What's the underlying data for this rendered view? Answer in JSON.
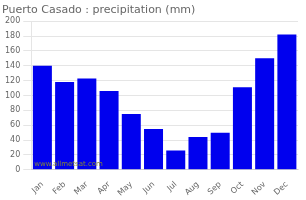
{
  "chart_data": {
    "type": "bar",
    "title": "Puerto Casado : precipitation (mm)",
    "categories": [
      "Jan",
      "Feb",
      "Mar",
      "Apr",
      "May",
      "Jun",
      "Jul",
      "Aug",
      "Sep",
      "Oct",
      "Nov",
      "Dec"
    ],
    "values": [
      140,
      118,
      123,
      106,
      75,
      55,
      26,
      44,
      50,
      111,
      150,
      182
    ],
    "color": "#0000ee",
    "ylim": [
      0,
      200
    ],
    "yticks": [
      0,
      20,
      40,
      60,
      80,
      100,
      120,
      140,
      160,
      180,
      200
    ],
    "grid": true,
    "annotations": [
      {
        "text": "www.allmetsat.com",
        "color": "#888833"
      }
    ]
  }
}
